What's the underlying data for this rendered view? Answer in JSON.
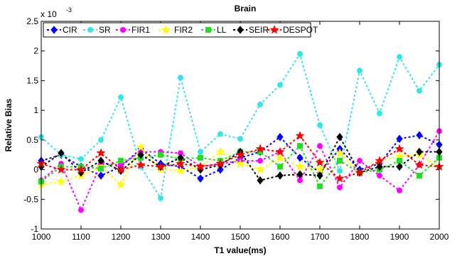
{
  "chart_data": {
    "type": "line",
    "title": "Brain",
    "xlabel": "T1 value(ms)",
    "ylabel": "Relative Bias",
    "y_multiplier_label": "x 10",
    "y_multiplier_exponent": "-3",
    "xlim": [
      1000,
      2000
    ],
    "ylim": [
      -1,
      2.5
    ],
    "x_ticks": [
      1000,
      1100,
      1200,
      1300,
      1400,
      1500,
      1600,
      1700,
      1800,
      1900,
      2000
    ],
    "y_ticks": [
      -1,
      -0.5,
      0,
      0.5,
      1,
      1.5,
      2,
      2.5
    ],
    "y_tick_labels": [
      "-1",
      "-0.5",
      "0",
      "0.5",
      "1",
      "1.5",
      "2",
      "2.5"
    ],
    "grid": false,
    "legend_position": "top",
    "x": [
      1000,
      1050,
      1100,
      1150,
      1200,
      1250,
      1300,
      1350,
      1400,
      1450,
      1500,
      1550,
      1600,
      1650,
      1700,
      1750,
      1800,
      1850,
      1900,
      1950,
      2000
    ],
    "series": [
      {
        "name": "CIR",
        "color": "#0000ff",
        "marker": "diamond",
        "values": [
          0.15,
          0.25,
          0.05,
          -0.1,
          0.05,
          0.35,
          0.1,
          0.05,
          -0.15,
          0.0,
          0.2,
          0.3,
          0.55,
          0.2,
          -0.05,
          0.35,
          0.0,
          0.1,
          0.52,
          0.58,
          0.42
        ]
      },
      {
        "name": "SR",
        "color": "#33e6e6",
        "marker": "circle",
        "values": [
          0.55,
          0.25,
          0.18,
          0.5,
          1.22,
          0.05,
          -0.48,
          1.55,
          0.3,
          0.6,
          0.52,
          1.1,
          1.43,
          1.95,
          0.75,
          -0.02,
          1.67,
          0.95,
          1.9,
          1.33,
          1.77
        ]
      },
      {
        "name": "FIR1",
        "color": "#ff00ff",
        "marker": "circle",
        "values": [
          -0.18,
          0.1,
          -0.68,
          0.1,
          0.08,
          0.3,
          0.3,
          0.28,
          0.05,
          0.1,
          0.15,
          0.15,
          0.3,
          -0.18,
          0.4,
          -0.3,
          0.15,
          -0.1,
          -0.35,
          0.08,
          0.65
        ]
      },
      {
        "name": "FIR2",
        "color": "#ffff00",
        "marker": "star",
        "values": [
          -0.25,
          -0.2,
          -0.1,
          0.05,
          -0.25,
          0.38,
          0.0,
          -0.02,
          0.05,
          0.3,
          0.1,
          0.0,
          0.2,
          0.05,
          0.0,
          0.28,
          -0.05,
          0.15,
          0.22,
          0.25,
          0.05
        ]
      },
      {
        "name": "LL",
        "color": "#22dd22",
        "marker": "square",
        "values": [
          -0.2,
          0.05,
          0.05,
          0.02,
          0.15,
          0.2,
          0.25,
          0.18,
          0.2,
          0.15,
          0.3,
          0.3,
          0.05,
          0.4,
          -0.28,
          0.15,
          -0.05,
          0.0,
          0.15,
          -0.1,
          0.2
        ]
      },
      {
        "name": "SEIR",
        "color": "#000000",
        "marker": "diamond",
        "values": [
          0.05,
          0.28,
          -0.05,
          0.15,
          -0.02,
          0.25,
          0.05,
          0.2,
          0.0,
          0.08,
          0.3,
          -0.18,
          -0.1,
          -0.08,
          -0.1,
          0.55,
          -0.05,
          0.05,
          0.05,
          0.3,
          0.3
        ]
      },
      {
        "name": "DESPOT",
        "color": "#ff0000",
        "marker": "star",
        "values": [
          0.1,
          0.0,
          0.0,
          0.28,
          0.0,
          0.08,
          0.05,
          0.1,
          0.05,
          0.1,
          0.25,
          0.35,
          0.3,
          0.57,
          0.12,
          -0.15,
          -0.05,
          0.15,
          0.35,
          0.08,
          0.05
        ]
      }
    ]
  }
}
